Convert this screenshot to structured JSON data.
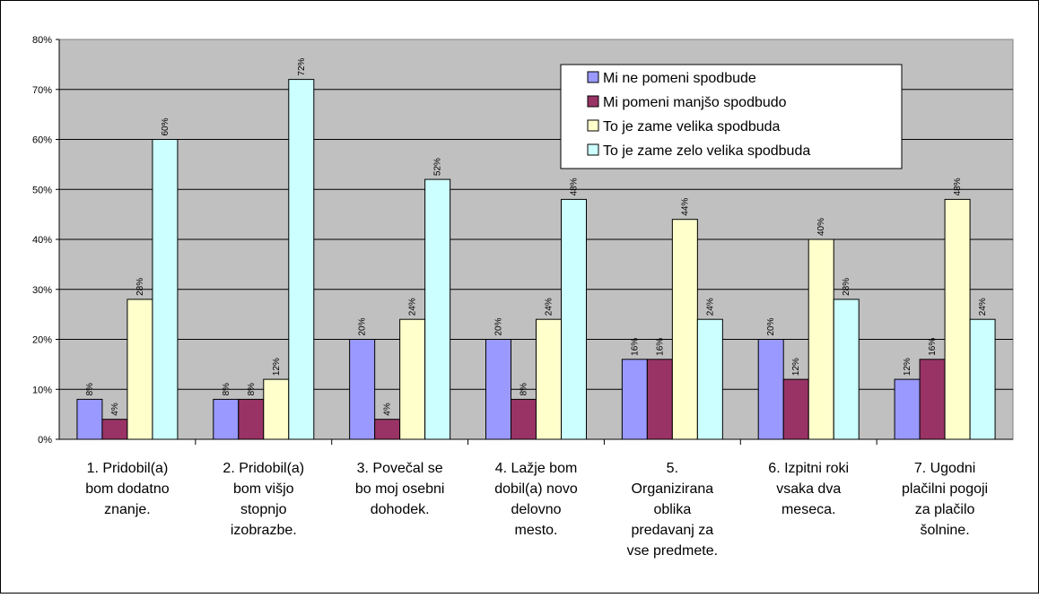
{
  "chart_data": {
    "type": "bar",
    "title": "",
    "xlabel": "",
    "ylabel": "",
    "ylim": [
      0,
      80
    ],
    "yticks": [
      "0%",
      "10%",
      "20%",
      "30%",
      "40%",
      "50%",
      "60%",
      "70%",
      "80%"
    ],
    "grid": true,
    "legend_position": "top-right",
    "categories": [
      [
        "1. Pridobil(a)",
        "bom dodatno",
        "znanje."
      ],
      [
        "2. Pridobil(a)",
        "bom višjo",
        "stopnjo",
        "izobrazbe."
      ],
      [
        "3. Povečal se",
        "bo moj osebni",
        "dohodek."
      ],
      [
        "4. Lažje bom",
        "dobil(a) novo",
        "delovno",
        "mesto."
      ],
      [
        "5.",
        "Organizirana",
        "oblika",
        "predavanj za",
        "vse predmete."
      ],
      [
        "6. Izpitni roki",
        "vsaka dva",
        "meseca."
      ],
      [
        "7. Ugodni",
        "plačilni pogoji",
        "za plačilo",
        "šolnine."
      ]
    ],
    "series": [
      {
        "name": "Mi ne pomeni spodbude",
        "color": "#9999ff",
        "values": [
          8,
          8,
          20,
          20,
          16,
          20,
          12
        ],
        "labels": [
          "8%",
          "8%",
          "20%",
          "20%",
          "16%",
          "20%",
          "12%"
        ]
      },
      {
        "name": "Mi pomeni manjšo spodbudo",
        "color": "#993366",
        "values": [
          4,
          8,
          4,
          8,
          16,
          12,
          16
        ],
        "labels": [
          "4%",
          "8%",
          "4%",
          "8%",
          "16%",
          "12%",
          "16%"
        ]
      },
      {
        "name": "To je zame velika spodbuda",
        "color": "#ffffcc",
        "values": [
          28,
          12,
          24,
          24,
          44,
          40,
          48
        ],
        "labels": [
          "28%",
          "12%",
          "24%",
          "24%",
          "44%",
          "40%",
          "48%"
        ]
      },
      {
        "name": "To je zame zelo velika spodbuda",
        "color": "#ccffff",
        "values": [
          60,
          72,
          52,
          48,
          24,
          28,
          24
        ],
        "labels": [
          "60%",
          "72%",
          "52%",
          "48%",
          "24%",
          "28%",
          "24%"
        ]
      }
    ],
    "plot_background": "#c0c0c0"
  }
}
